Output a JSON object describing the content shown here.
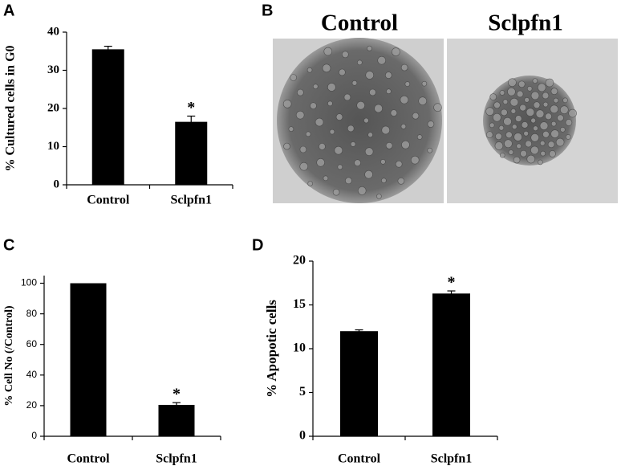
{
  "chart_data": [
    {
      "type": "bar",
      "panel": "A",
      "y_label": "% Cultured cells in G0",
      "categories": [
        "Control",
        "Sclpfn1"
      ],
      "values": [
        35.5,
        16.5
      ],
      "errors": [
        0.8,
        1.5
      ],
      "significance": [
        null,
        "*"
      ],
      "color": "#000000",
      "ylim": [
        0,
        40
      ],
      "yticks": [
        0,
        10,
        20,
        30,
        40
      ]
    },
    {
      "type": "bar",
      "panel": "C",
      "y_label": "% Cell No (/Control)",
      "categories": [
        "Control",
        "Sclpfn1"
      ],
      "values": [
        100,
        20.5
      ],
      "errors": [
        0,
        1.5
      ],
      "significance": [
        null,
        "*"
      ],
      "color": "#000000",
      "ylim": [
        0,
        105
      ],
      "yticks": [
        0,
        20,
        40,
        60,
        80,
        100
      ]
    },
    {
      "type": "bar",
      "panel": "D",
      "y_label": "% Apopotic cells",
      "categories": [
        "Control",
        "Sclpfn1"
      ],
      "values": [
        12,
        16.3
      ],
      "errors": [
        0.15,
        0.3
      ],
      "significance": [
        null,
        "*"
      ],
      "color": "#000000",
      "ylim": [
        0,
        20
      ],
      "yticks": [
        0,
        5,
        10,
        15,
        20
      ]
    }
  ],
  "panel_b": {
    "panel": "B",
    "labels": [
      "Control",
      "Sclpfn1"
    ]
  }
}
